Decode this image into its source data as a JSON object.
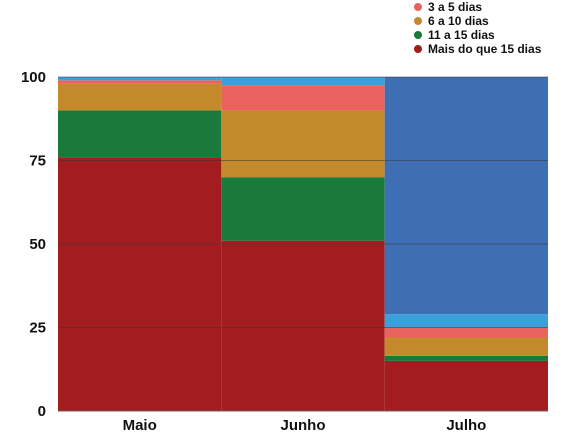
{
  "chart_data": {
    "type": "bar",
    "stacked": true,
    "categories": [
      "Maio",
      "Junho",
      "Julho"
    ],
    "ylim": [
      0,
      100
    ],
    "yticks": [
      0,
      25,
      50,
      75,
      100
    ],
    "grid": true,
    "legend_position": "top-right",
    "series": [
      {
        "name": "Mais do que 15 dias",
        "color": "#a31c1f",
        "values": [
          76,
          51,
          15
        ]
      },
      {
        "name": "11 a 15 dias",
        "color": "#1a7a3c",
        "values": [
          14,
          19,
          1.5
        ]
      },
      {
        "name": "6 a 10 dias",
        "color": "#c28a2b",
        "values": [
          8,
          20,
          5.5
        ]
      },
      {
        "name": "3 a 5 dias",
        "color": "#e9625d",
        "values": [
          1,
          7.5,
          3
        ]
      },
      {
        "color": "#3aa0dc",
        "values": [
          1,
          2.5,
          4
        ]
      },
      {
        "color": "#3e6eb4",
        "values": [
          0,
          0,
          71
        ]
      }
    ]
  },
  "legend": [
    {
      "label": "3 a 5 dias",
      "color": "#e9625d"
    },
    {
      "label": "6 a 10 dias",
      "color": "#c28a2b"
    },
    {
      "label": "11 a 15 dias",
      "color": "#1a7a3c"
    },
    {
      "label": "Mais do que 15 dias",
      "color": "#a31c1f"
    }
  ]
}
